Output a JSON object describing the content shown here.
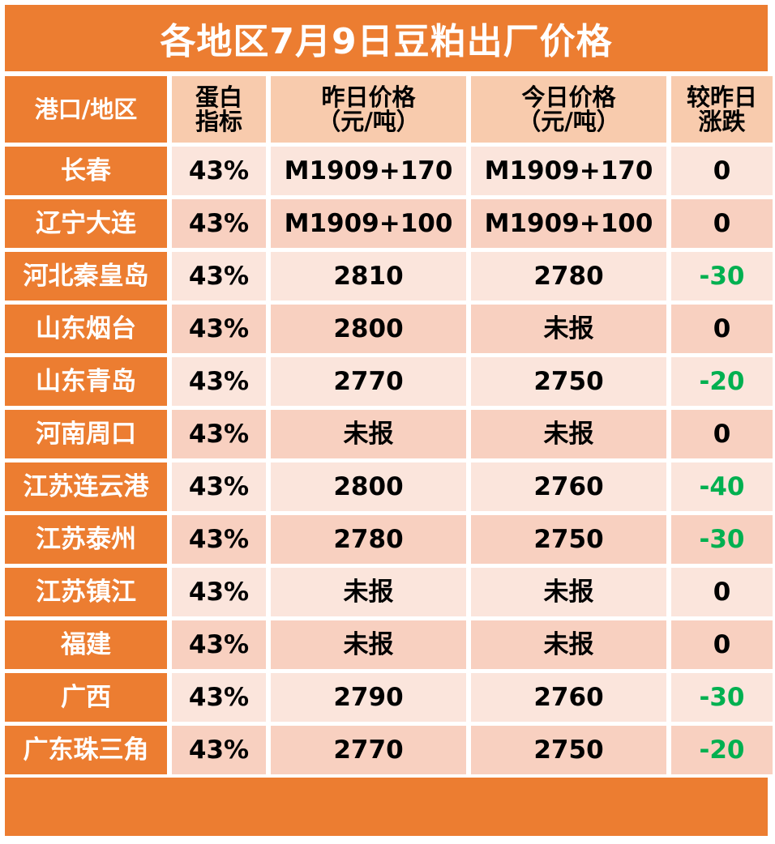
{
  "title": "各地区7月9日豆粕出厂价格",
  "headers": {
    "region": "港口/地区",
    "protein_1": "蛋白",
    "protein_2": "指标",
    "yesterday_1": "昨日价格",
    "yesterday_2": "（元/吨）",
    "today_1": "今日价格",
    "today_2": "（元/吨）",
    "change_1": "较昨日",
    "change_2": "涨跌"
  },
  "colors": {
    "accent": "#ec7d31",
    "header_bg": "#f8cbad",
    "row_light": "#fbe5dc",
    "row_dark": "#f8d0c0",
    "decline": "#00b050"
  },
  "rows": [
    {
      "region": "长春",
      "protein": "43%",
      "yesterday": "M1909+170",
      "today": "M1909+170",
      "change": "0"
    },
    {
      "region": "辽宁大连",
      "protein": "43%",
      "yesterday": "M1909+100",
      "today": "M1909+100",
      "change": "0"
    },
    {
      "region": "河北秦皇岛",
      "protein": "43%",
      "yesterday": "2810",
      "today": "2780",
      "change": "-30"
    },
    {
      "region": "山东烟台",
      "protein": "43%",
      "yesterday": "2800",
      "today": "未报",
      "change": "0"
    },
    {
      "region": "山东青岛",
      "protein": "43%",
      "yesterday": "2770",
      "today": "2750",
      "change": "-20"
    },
    {
      "region": "河南周口",
      "protein": "43%",
      "yesterday": "未报",
      "today": "未报",
      "change": "0"
    },
    {
      "region": "江苏连云港",
      "protein": "43%",
      "yesterday": "2800",
      "today": "2760",
      "change": "-40"
    },
    {
      "region": "江苏泰州",
      "protein": "43%",
      "yesterday": "2780",
      "today": "2750",
      "change": "-30"
    },
    {
      "region": "江苏镇江",
      "protein": "43%",
      "yesterday": "未报",
      "today": "未报",
      "change": "0"
    },
    {
      "region": "福建",
      "protein": "43%",
      "yesterday": "未报",
      "today": "未报",
      "change": "0"
    },
    {
      "region": "广西",
      "protein": "43%",
      "yesterday": "2790",
      "today": "2760",
      "change": "-30"
    },
    {
      "region": "广东珠三角",
      "protein": "43%",
      "yesterday": "2770",
      "today": "2750",
      "change": "-20"
    }
  ]
}
